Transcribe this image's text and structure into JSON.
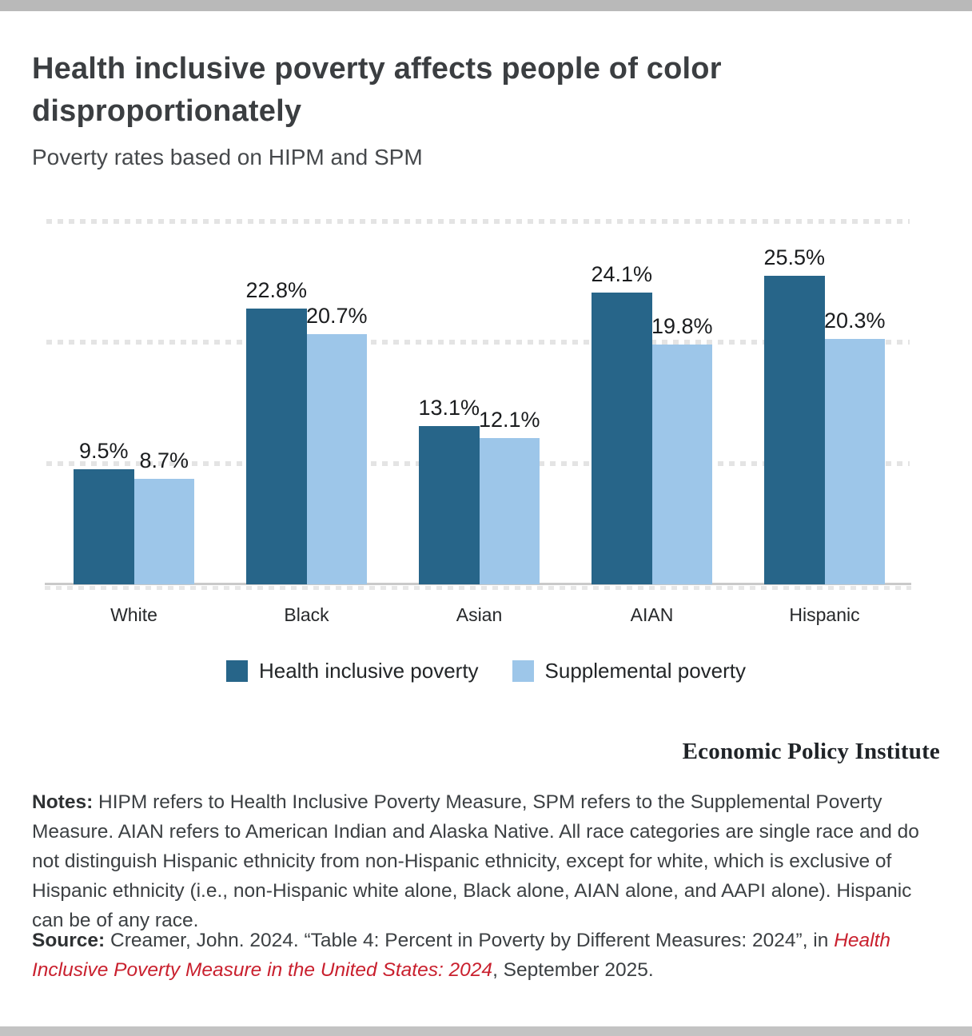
{
  "page": {
    "title": "Health inclusive poverty affects people of color disproportionately",
    "subtitle": "Poverty rates based on HIPM and SPM",
    "branding": "Economic Policy Institute"
  },
  "chart_data": {
    "type": "bar",
    "title": "Health inclusive poverty affects people of color disproportionately",
    "subtitle": "Poverty rates based on HIPM and SPM",
    "categories": [
      "White",
      "Black",
      "Asian",
      "AIAN",
      "Hispanic"
    ],
    "series": [
      {
        "name": "Health inclusive poverty",
        "color": "#276589",
        "values": [
          9.5,
          22.8,
          13.1,
          24.1,
          25.5
        ]
      },
      {
        "name": "Supplemental poverty",
        "color": "#9dc6e9",
        "values": [
          8.7,
          20.7,
          12.1,
          19.8,
          20.3
        ]
      }
    ],
    "value_label_suffix": "%",
    "ylim": [
      0,
      30
    ],
    "gridlines": [
      10,
      20,
      30
    ],
    "grid_style": "dotted",
    "grid_color": "#e4e4e4",
    "legend_position": "bottom"
  },
  "notes": {
    "label": "Notes:",
    "text": "HIPM refers to Health Inclusive Poverty Measure, SPM refers to the Supplemental Poverty Measure. AIAN refers to American Indian and Alaska Native. All race categories are single race and do not distinguish Hispanic ethnicity from non-Hispanic ethnicity, except for white, which is exclusive of Hispanic ethnicity (i.e., non-Hispanic white alone, Black alone, AIAN alone, and AAPI alone). Hispanic can be of any race."
  },
  "source": {
    "label": "Source:",
    "before_link": "Creamer, John. 2024. “Table 4: Percent in Poverty by Different Measures: 2024”, in",
    "link_text": "Health Inclusive Poverty Measure in the United States: 2024",
    "after_link": ", September 2025.",
    "link_color": "#c9202e"
  }
}
